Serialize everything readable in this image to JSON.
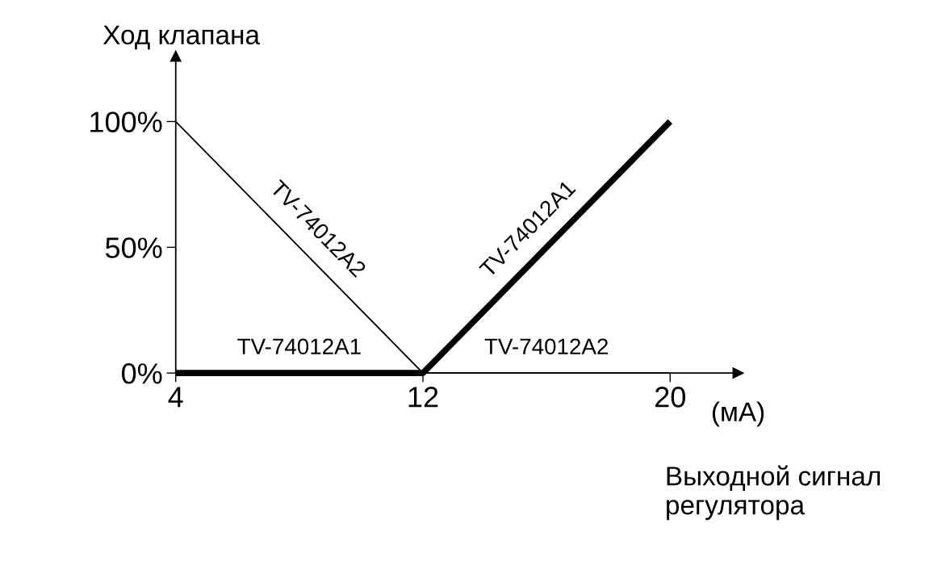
{
  "chart_data": {
    "type": "line",
    "ylabel": "Ход клапана",
    "xlabel": "(мА)",
    "annotations": [
      "Выходной сигнал регулятора"
    ],
    "xlim": [
      4,
      22.2
    ],
    "xticks": [
      4,
      12,
      20
    ],
    "ylim": [
      0,
      126
    ],
    "yticks": [
      {
        "value": 0,
        "label": "0%"
      },
      {
        "value": 50,
        "label": "50%"
      },
      {
        "value": 100,
        "label": "100%"
      }
    ],
    "series": [
      {
        "name": "TV-74012A1",
        "color": "#000000",
        "x": [
          4,
          12,
          20
        ],
        "values": [
          0,
          0,
          100
        ]
      },
      {
        "name": "TV-74012A2",
        "color": "#000000",
        "x": [
          4,
          12,
          20
        ],
        "values": [
          100,
          0,
          0
        ]
      }
    ]
  }
}
